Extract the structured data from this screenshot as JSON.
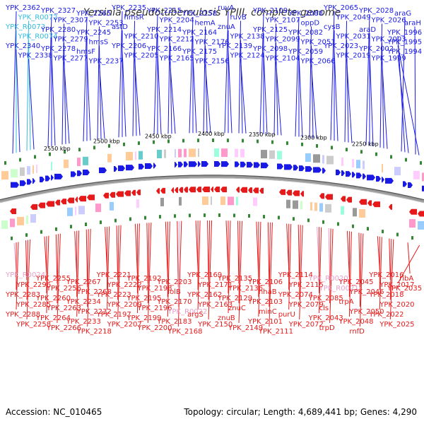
{
  "title": "Yersinia pseudotuberculosis YPIII, complete genome",
  "accession": "Accession: NC_010465",
  "footer": "Topology: circular; Length: 4,689,441 bp; Genes: 4,290",
  "colors": {
    "top_gene": "#1a1ae6",
    "top_rna": "#33bbdd",
    "bottom_gene": "#e61a1a",
    "bottom_rna": "#e6a0c8",
    "ring": "#888888",
    "tick": "#338833"
  },
  "ticks": [
    {
      "label": "2550 kbp"
    },
    {
      "label": "2500 kbp"
    },
    {
      "label": "2450 kbp"
    },
    {
      "label": "2400 kbp"
    },
    {
      "label": "2350 kbp"
    },
    {
      "label": "2300 kbp"
    },
    {
      "label": "2250 kbp"
    }
  ],
  "top_labels": [
    {
      "t": "YPK_2362",
      "type": "gene"
    },
    {
      "t": "YPK_R0072",
      "type": "rna"
    },
    {
      "t": "YPK_R0073",
      "type": "rna"
    },
    {
      "t": "YPK_R0074",
      "type": "rna"
    },
    {
      "t": "YPK_2340",
      "type": "gene"
    },
    {
      "t": "YPK_2338",
      "type": "gene"
    },
    {
      "t": "YPK_2327",
      "type": "gene"
    },
    {
      "t": "YPK_2307",
      "type": "gene"
    },
    {
      "t": "YPK_2280",
      "type": "gene"
    },
    {
      "t": "YPK_2279",
      "type": "gene"
    },
    {
      "t": "YPK_2278",
      "type": "gene"
    },
    {
      "t": "YPK_2277",
      "type": "gene"
    },
    {
      "t": "YPK_2265",
      "type": "gene"
    },
    {
      "t": "YPK_2253",
      "type": "gene"
    },
    {
      "t": "YPK_2245",
      "type": "gene"
    },
    {
      "t": "hmsS",
      "type": "gene"
    },
    {
      "t": "hmsF",
      "type": "gene"
    },
    {
      "t": "YPK_2237",
      "type": "gene"
    },
    {
      "t": "YPK_2235",
      "type": "gene"
    },
    {
      "t": "hmsR",
      "type": "gene"
    },
    {
      "t": "astD",
      "type": "gene"
    },
    {
      "t": "YPK_2210",
      "type": "gene"
    },
    {
      "t": "YPK_2206",
      "type": "gene"
    },
    {
      "t": "YPK_2205",
      "type": "gene"
    },
    {
      "t": "YPK_2215",
      "type": "gene"
    },
    {
      "t": "YPK_2204",
      "type": "gene"
    },
    {
      "t": "YPK_2214",
      "type": "gene"
    },
    {
      "t": "YPK_2212",
      "type": "gene"
    },
    {
      "t": "YPK_2166",
      "type": "gene"
    },
    {
      "t": "YPK_2165",
      "type": "gene"
    },
    {
      "t": "YPK_2158",
      "type": "gene"
    },
    {
      "t": "hemA",
      "type": "gene"
    },
    {
      "t": "YPK_2164",
      "type": "gene"
    },
    {
      "t": "YPK_2176",
      "type": "gene"
    },
    {
      "t": "YPK_2175",
      "type": "gene"
    },
    {
      "t": "YPK_2156",
      "type": "gene"
    },
    {
      "t": "ruvA",
      "type": "gene"
    },
    {
      "t": "ruvB",
      "type": "gene"
    },
    {
      "t": "znuA",
      "type": "gene"
    },
    {
      "t": "YPK_2138",
      "type": "gene"
    },
    {
      "t": "YPK_2139",
      "type": "gene"
    },
    {
      "t": "YPK_2124",
      "type": "gene"
    },
    {
      "t": "YPK_2109",
      "type": "gene"
    },
    {
      "t": "YPK_2107",
      "type": "gene"
    },
    {
      "t": "YPK_2125",
      "type": "gene"
    },
    {
      "t": "YPK_2099",
      "type": "gene"
    },
    {
      "t": "YPK_2098",
      "type": "gene"
    },
    {
      "t": "YPK_2104",
      "type": "gene"
    },
    {
      "t": "YPK_2088",
      "type": "gene"
    },
    {
      "t": "oppD",
      "type": "gene"
    },
    {
      "t": "YPK_2082",
      "type": "gene"
    },
    {
      "t": "YPK_2051",
      "type": "gene"
    },
    {
      "t": "YPK_2059",
      "type": "gene"
    },
    {
      "t": "YPK_2066",
      "type": "gene"
    },
    {
      "t": "YPK_2065",
      "type": "gene"
    },
    {
      "t": "YPK_2049",
      "type": "gene"
    },
    {
      "t": "cysB",
      "type": "gene"
    },
    {
      "t": "YPK_2031",
      "type": "gene"
    },
    {
      "t": "YPK_2023",
      "type": "gene"
    },
    {
      "t": "YPK_2019",
      "type": "gene"
    },
    {
      "t": "YPK_2028",
      "type": "gene"
    },
    {
      "t": "YPK_2026",
      "type": "gene"
    },
    {
      "t": "araD",
      "type": "gene"
    },
    {
      "t": "YPK_2003",
      "type": "gene"
    },
    {
      "t": "YPK_2002",
      "type": "gene"
    },
    {
      "t": "YPK_1999",
      "type": "gene"
    },
    {
      "t": "araG",
      "type": "gene"
    },
    {
      "t": "araH",
      "type": "gene"
    },
    {
      "t": "YPK_1996",
      "type": "gene"
    },
    {
      "t": "YPK_1995",
      "type": "gene"
    },
    {
      "t": "YPK_1994",
      "type": "gene"
    }
  ],
  "bottom_labels": [
    {
      "t": "YPK_R0024",
      "type": "rna"
    },
    {
      "t": "YPK_2296",
      "type": "gene"
    },
    {
      "t": "YPK_2283",
      "type": "gene"
    },
    {
      "t": "YPK_2285",
      "type": "gene"
    },
    {
      "t": "YPK_2288",
      "type": "gene"
    },
    {
      "t": "YPK_2258",
      "type": "gene"
    },
    {
      "t": "YPK_2255",
      "type": "gene"
    },
    {
      "t": "YPK_2256",
      "type": "gene"
    },
    {
      "t": "YPK_2260",
      "type": "gene"
    },
    {
      "t": "YPK_2263",
      "type": "gene"
    },
    {
      "t": "YPK_2264",
      "type": "gene"
    },
    {
      "t": "YPK_2266",
      "type": "gene"
    },
    {
      "t": "YPK_2267",
      "type": "gene"
    },
    {
      "t": "YPK_2268",
      "type": "gene"
    },
    {
      "t": "YPK_2234",
      "type": "gene"
    },
    {
      "t": "YPK_2232",
      "type": "gene"
    },
    {
      "t": "YPK_2233",
      "type": "gene"
    },
    {
      "t": "YPK_2218",
      "type": "gene"
    },
    {
      "t": "YPK_2221",
      "type": "gene"
    },
    {
      "t": "YPK_2222",
      "type": "gene"
    },
    {
      "t": "YPK_2223",
      "type": "gene"
    },
    {
      "t": "YPK_2209",
      "type": "gene"
    },
    {
      "t": "YPK_2197",
      "type": "gene"
    },
    {
      "t": "YPK_2207",
      "type": "gene"
    },
    {
      "t": "YPK_2192",
      "type": "gene"
    },
    {
      "t": "YPK_2198",
      "type": "gene"
    },
    {
      "t": "YPK_2195",
      "type": "gene"
    },
    {
      "t": "YPK_2196",
      "type": "gene"
    },
    {
      "t": "YPK_2199",
      "type": "gene"
    },
    {
      "t": "YPK_2200",
      "type": "gene"
    },
    {
      "t": "YPK_2203",
      "type": "gene"
    },
    {
      "t": "lolB",
      "type": "gene"
    },
    {
      "t": "YPK_2170",
      "type": "gene"
    },
    {
      "t": "YPK_R0022",
      "type": "rna"
    },
    {
      "t": "YPK_2183",
      "type": "gene"
    },
    {
      "t": "YPK_2168",
      "type": "gene"
    },
    {
      "t": "YPK_2169",
      "type": "gene"
    },
    {
      "t": "YPK_2171",
      "type": "gene"
    },
    {
      "t": "YPK_2162",
      "type": "gene"
    },
    {
      "t": "YPK_2163",
      "type": "gene"
    },
    {
      "t": "argS",
      "type": "gene"
    },
    {
      "t": "YPK_2150",
      "type": "gene"
    },
    {
      "t": "YPK_2135",
      "type": "gene"
    },
    {
      "t": "YPK_2136",
      "type": "gene"
    },
    {
      "t": "YPK_2129",
      "type": "gene"
    },
    {
      "t": "znuC",
      "type": "gene"
    },
    {
      "t": "znuB",
      "type": "gene"
    },
    {
      "t": "YPK_2149",
      "type": "gene"
    },
    {
      "t": "YPK_2106",
      "type": "gene"
    },
    {
      "t": "nhaB",
      "type": "gene"
    },
    {
      "t": "YPK_2103",
      "type": "gene"
    },
    {
      "t": "minC",
      "type": "gene"
    },
    {
      "t": "YPK_2101",
      "type": "gene"
    },
    {
      "t": "YPK_2111",
      "type": "gene"
    },
    {
      "t": "YPK_2114",
      "type": "gene"
    },
    {
      "t": "YPK_2115",
      "type": "gene"
    },
    {
      "t": "YPK_2074",
      "type": "gene"
    },
    {
      "t": "YPK_2079",
      "type": "gene"
    },
    {
      "t": "purU",
      "type": "gene"
    },
    {
      "t": "YPK_2072",
      "type": "gene"
    },
    {
      "t": "YPK_R0020",
      "type": "rna"
    },
    {
      "t": "YPK_R0021",
      "type": "rna"
    },
    {
      "t": "YPK_2085",
      "type": "gene"
    },
    {
      "t": "cls",
      "type": "gene"
    },
    {
      "t": "YPK_2043",
      "type": "gene"
    },
    {
      "t": "trpD",
      "type": "gene"
    },
    {
      "t": "YPK_2045",
      "type": "gene"
    },
    {
      "t": "YPK_2046",
      "type": "gene"
    },
    {
      "t": "trpA",
      "type": "gene"
    },
    {
      "t": "YPK_2050",
      "type": "gene"
    },
    {
      "t": "YPK_2048",
      "type": "gene"
    },
    {
      "t": "rnfD",
      "type": "gene"
    },
    {
      "t": "YPK_2016",
      "type": "gene"
    },
    {
      "t": "YPK_2017",
      "type": "gene"
    },
    {
      "t": "YPK_2018",
      "type": "gene"
    },
    {
      "t": "YPK_2020",
      "type": "gene"
    },
    {
      "t": "YPK_2022",
      "type": "gene"
    },
    {
      "t": "YPK_2025",
      "type": "gene"
    },
    {
      "t": "ribA",
      "type": "gene"
    },
    {
      "t": "YPK_2035",
      "type": "gene"
    }
  ]
}
